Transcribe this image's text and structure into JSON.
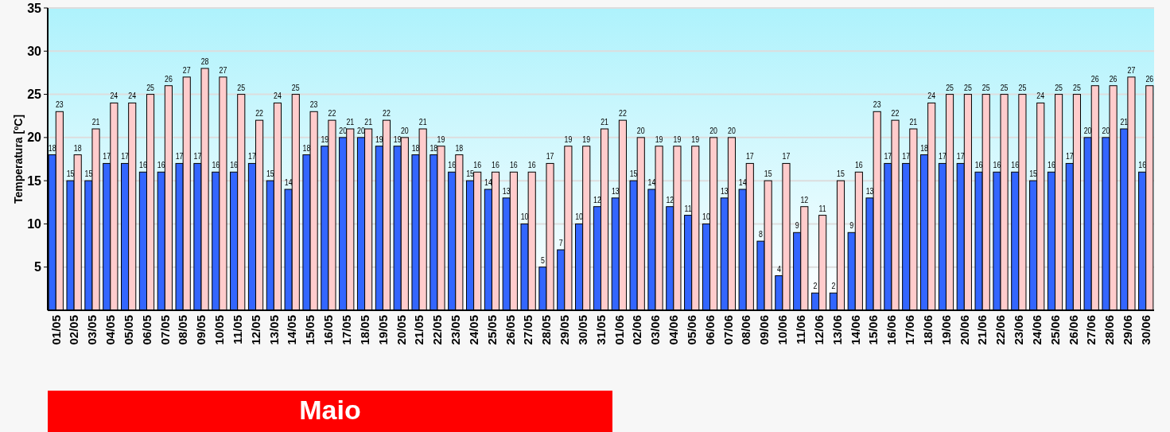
{
  "chart_data": {
    "type": "bar",
    "ylabel": "Temperatura [ºC]",
    "categories": [
      "01/05",
      "02/05",
      "03/05",
      "04/05",
      "05/05",
      "06/05",
      "07/05",
      "08/05",
      "09/05",
      "10/05",
      "11/05",
      "12/05",
      "13/05",
      "14/05",
      "15/05",
      "16/05",
      "17/05",
      "18/05",
      "19/05",
      "20/05",
      "21/05",
      "22/05",
      "23/05",
      "24/05",
      "25/05",
      "26/05",
      "27/05",
      "28/05",
      "29/05",
      "30/05",
      "31/05",
      "01/06",
      "02/06",
      "03/06",
      "04/06",
      "05/06",
      "06/06",
      "07/06",
      "08/06",
      "09/06",
      "10/06",
      "11/06",
      "12/06",
      "13/06",
      "14/06",
      "15/06",
      "16/06",
      "17/06",
      "18/06",
      "19/06",
      "20/06",
      "21/06",
      "22/06",
      "23/06",
      "24/06",
      "25/06",
      "26/06",
      "27/06",
      "28/06",
      "29/06",
      "30/06"
    ],
    "series": [
      {
        "color": "#3366ff",
        "values": [
          18,
          15,
          15,
          17,
          17,
          16,
          16,
          17,
          17,
          16,
          16,
          17,
          15,
          14,
          18,
          19,
          20,
          20,
          19,
          19,
          18,
          18,
          16,
          15,
          14,
          13,
          10,
          5,
          7,
          10,
          12,
          13,
          15,
          14,
          12,
          11,
          10,
          13,
          14,
          8,
          4,
          9,
          2,
          2,
          9,
          13,
          17,
          17,
          18,
          17,
          17,
          16,
          16,
          16,
          15,
          16,
          17,
          20,
          20,
          21,
          16
        ]
      },
      {
        "color": "#ffcccc",
        "values": [
          23,
          18,
          21,
          24,
          24,
          25,
          26,
          27,
          28,
          27,
          25,
          22,
          24,
          25,
          23,
          22,
          21,
          21,
          22,
          20,
          21,
          19,
          18,
          16,
          16,
          16,
          16,
          17,
          19,
          19,
          21,
          22,
          20,
          19,
          19,
          19,
          20,
          20,
          17,
          15,
          17,
          12,
          11,
          15,
          16,
          23,
          22,
          21,
          24,
          25,
          25,
          25,
          25,
          25,
          24,
          25,
          25,
          26,
          26,
          27,
          26
        ]
      }
    ],
    "ylim": [
      0,
      35
    ],
    "yticks": [
      5,
      10,
      15,
      20,
      25,
      30,
      35
    ],
    "grid": "y",
    "data_labels": true,
    "annotations": [
      "Maio"
    ]
  }
}
